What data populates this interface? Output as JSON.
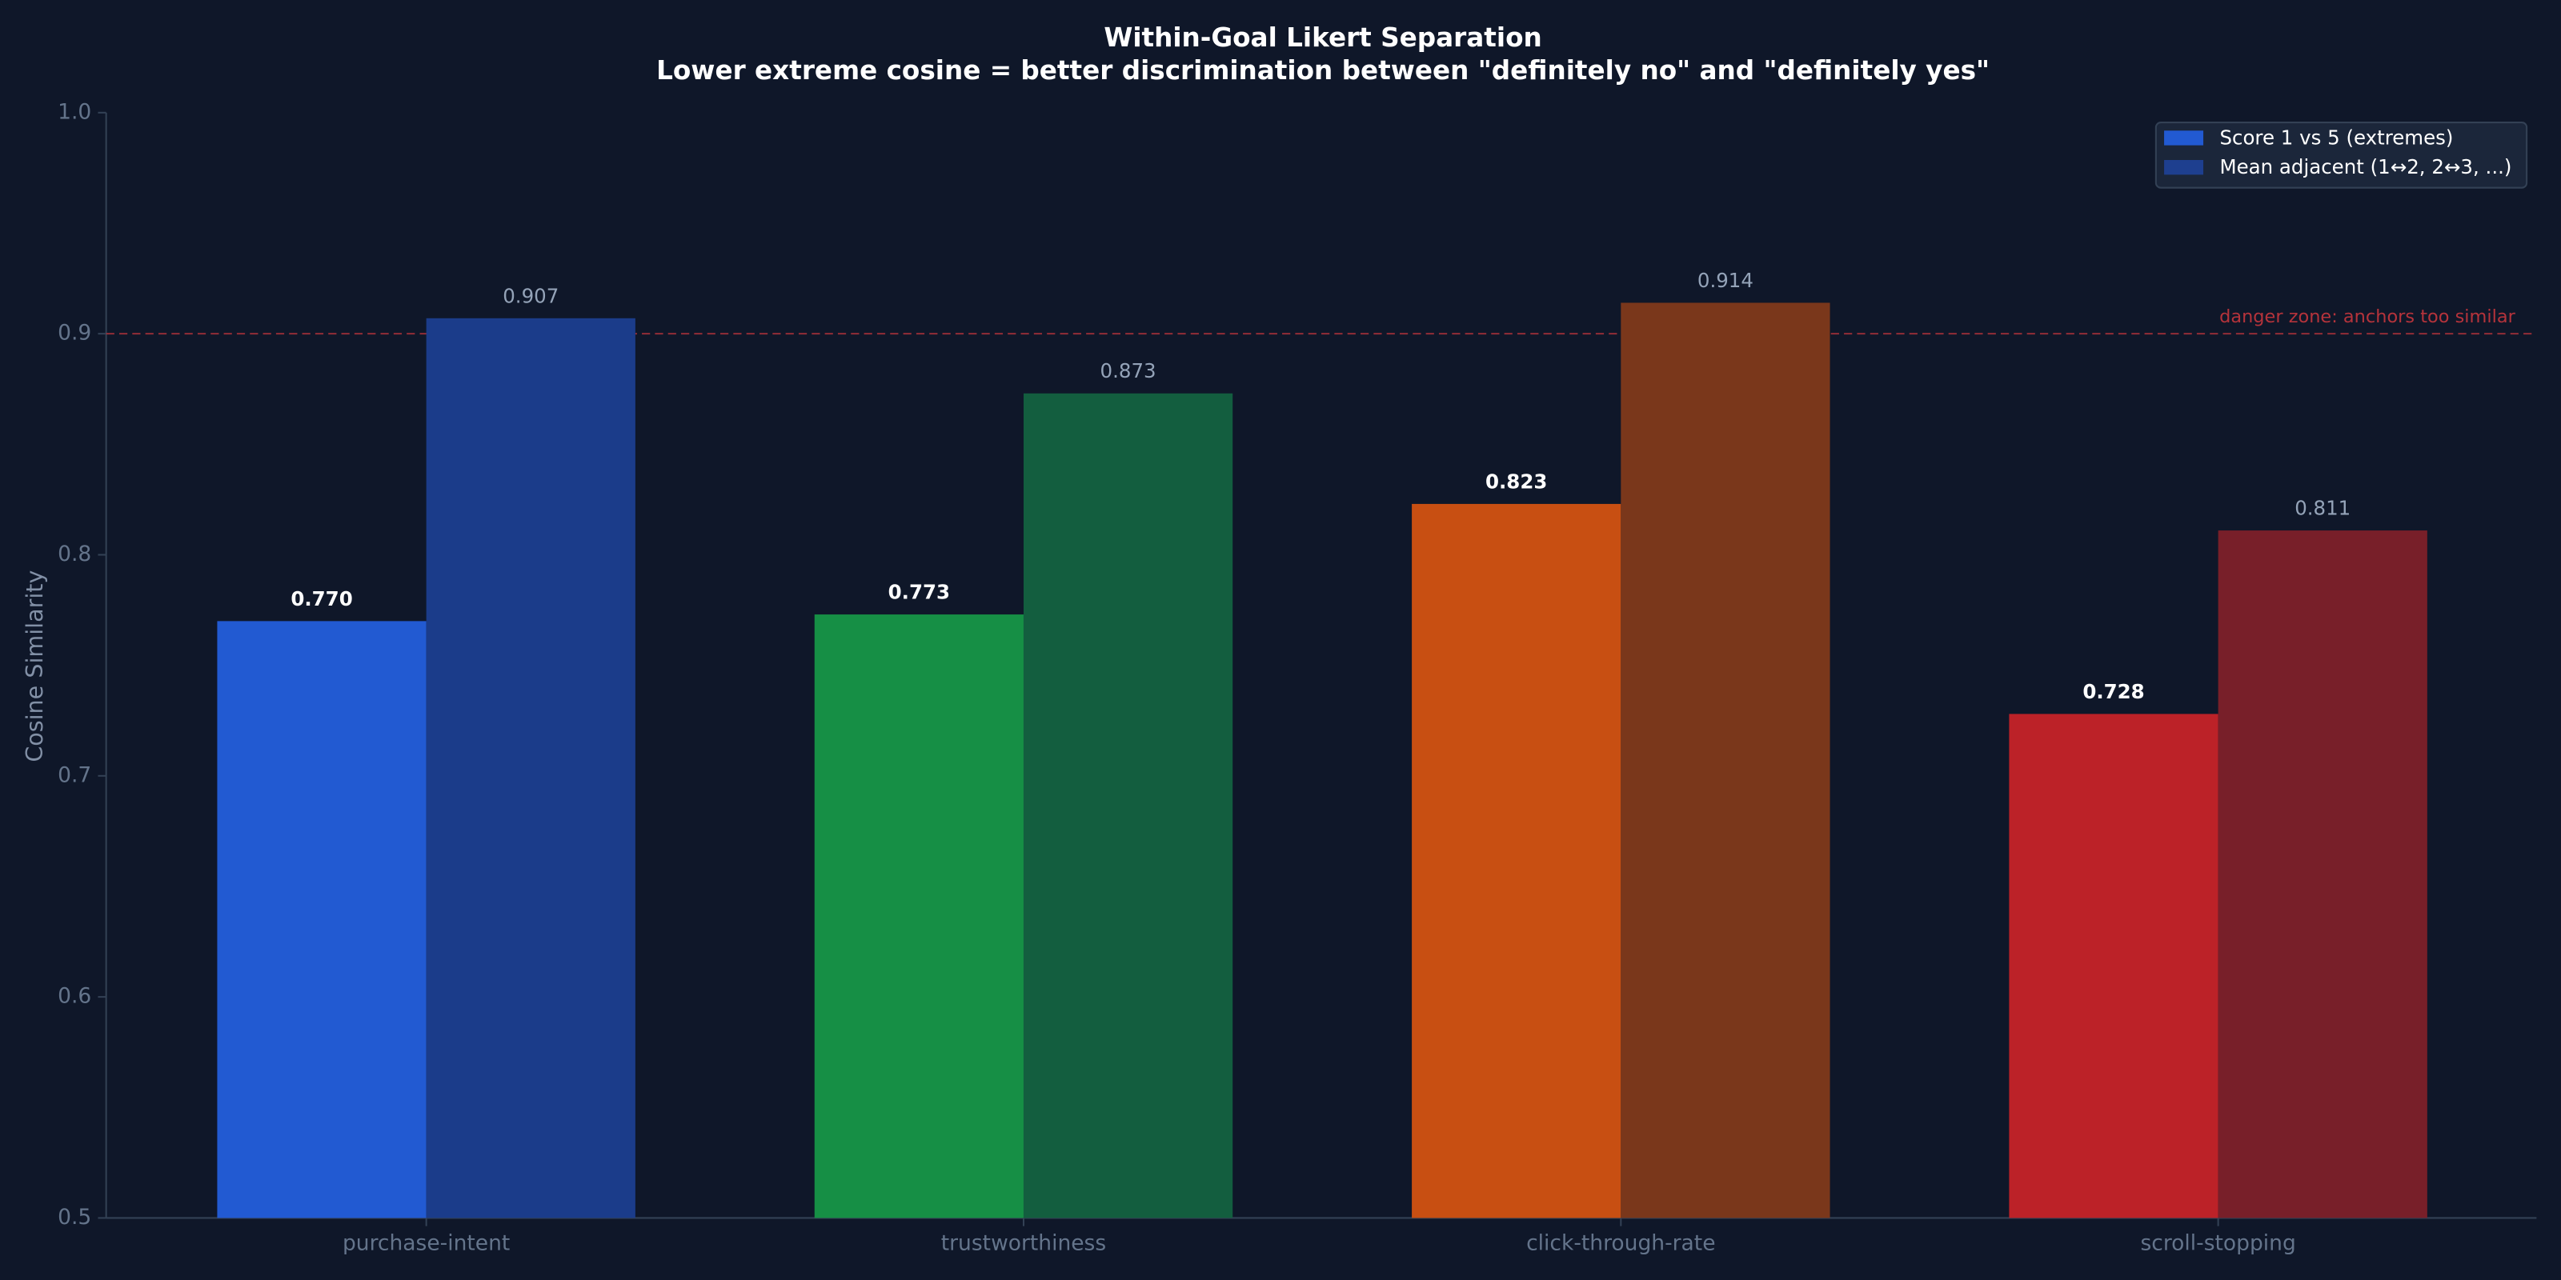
{
  "chart_data": {
    "type": "bar",
    "title": "Within-Goal Likert Separation",
    "subtitle": "Lower extreme cosine = better discrimination between \"definitely no\" and \"definitely yes\"",
    "y_label": "Cosine Similarity",
    "categories": [
      "purchase-intent",
      "trustworthiness",
      "click-through-rate",
      "scroll-stopping"
    ],
    "series": [
      {
        "name": "Score 1 vs 5 (extremes)",
        "color": "#225ad2",
        "colors": [
          "#225ad2",
          "#168f45",
          "#c84f12",
          "#bc2228"
        ],
        "values": [
          0.77,
          0.773,
          0.823,
          0.728
        ],
        "value_labels": [
          "0.770",
          "0.773",
          "0.823",
          "0.728"
        ]
      },
      {
        "name": "Mean adjacent (1↔2, 2↔3, ...)",
        "color": "#1e3f8f",
        "colors": [
          "#1b3c8a",
          "#135e3f",
          "#7a371b",
          "#781f29"
        ],
        "values": [
          0.907,
          0.873,
          0.914,
          0.811
        ]
      }
    ],
    "ylim": [
      0.5,
      1.0
    ],
    "yticks": [
      0.5,
      0.6,
      0.7,
      0.8,
      0.9,
      {
        "value": 1,
        "label": "1.0"
      }
    ],
    "reference_line": {
      "value": 0.9,
      "label": "danger zone: anchors too similar",
      "color": "#b5333b"
    },
    "legend": "upper right"
  }
}
